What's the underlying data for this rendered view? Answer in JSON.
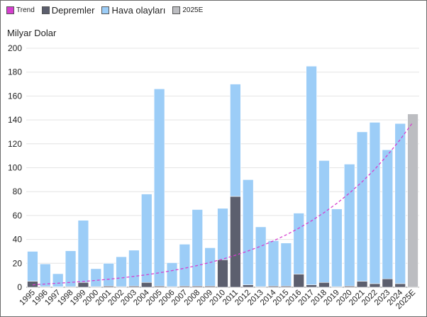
{
  "chart_data": {
    "type": "bar",
    "stacked": true,
    "ylabel": "Milyar Dolar",
    "ylim": [
      0,
      200
    ],
    "yticks": [
      0,
      20,
      40,
      60,
      80,
      100,
      120,
      140,
      160,
      180,
      200
    ],
    "grid": true,
    "legend_position": "top-left",
    "categories": [
      "1995",
      "1996",
      "1997",
      "1998",
      "1999",
      "2000",
      "2001",
      "2002",
      "2003",
      "2004",
      "2005",
      "2006",
      "2007",
      "2008",
      "2009",
      "2010",
      "2011",
      "2012",
      "2013",
      "2014",
      "2015",
      "2016",
      "2017",
      "2018",
      "2019",
      "2020",
      "2021",
      "2022",
      "2023",
      "2024",
      "2025E"
    ],
    "series": [
      {
        "name": "Depremler",
        "color": "#5c5f6e",
        "values": [
          5,
          0.5,
          0.3,
          0.5,
          4,
          0.5,
          1,
          0.5,
          1,
          4,
          1,
          0.5,
          1,
          1,
          1,
          23,
          76,
          2,
          0.5,
          1,
          1,
          11,
          2,
          4,
          0.5,
          1,
          5,
          3,
          7,
          3,
          0
        ]
      },
      {
        "name": "Hava olayları",
        "color": "#9ccdf7",
        "values": [
          25,
          19,
          11,
          30,
          52,
          15,
          19,
          25,
          30,
          74,
          165,
          20,
          35,
          64,
          32,
          43,
          94,
          88,
          50,
          38,
          36,
          51,
          183,
          102,
          65,
          102,
          125,
          135,
          108,
          134,
          0
        ]
      },
      {
        "name": "2025E",
        "color": "#bcbdc1",
        "values": [
          0,
          0,
          0,
          0,
          0,
          0,
          0,
          0,
          0,
          0,
          0,
          0,
          0,
          0,
          0,
          0,
          0,
          0,
          0,
          0,
          0,
          0,
          0,
          0,
          0,
          0,
          0,
          0,
          0,
          0,
          145
        ]
      }
    ],
    "trend": {
      "name": "Trend",
      "color": "#d63fcf",
      "style": "dashed",
      "start": 2,
      "end": 138
    }
  }
}
